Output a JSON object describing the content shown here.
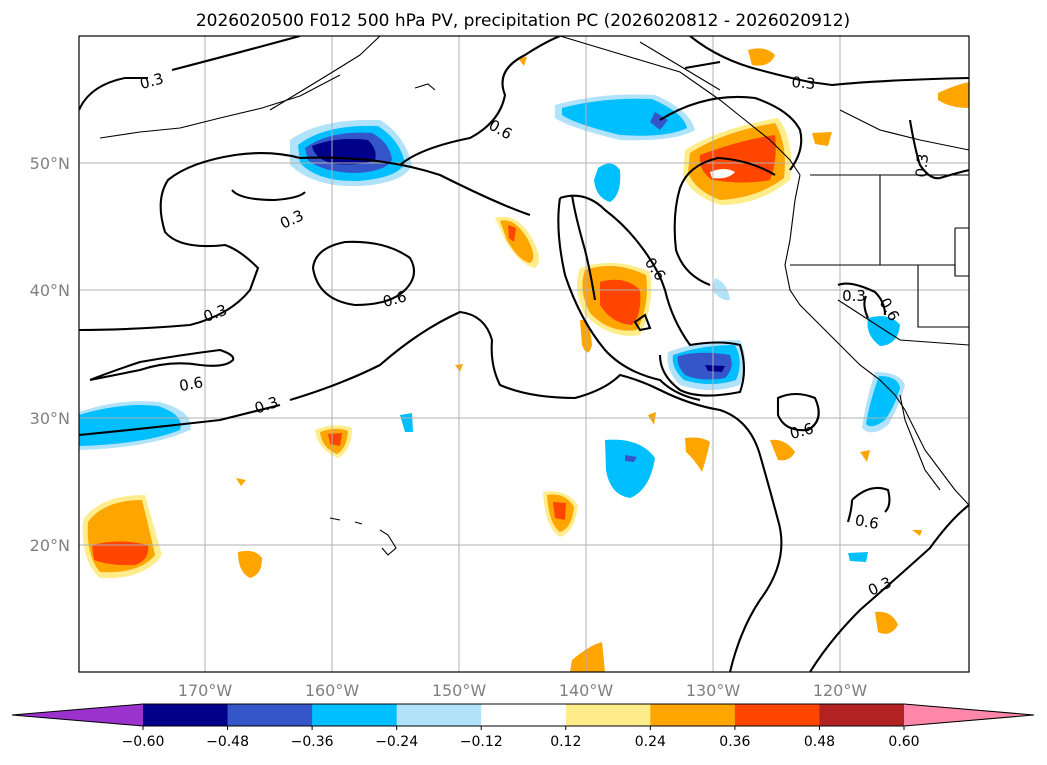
{
  "title": "2026020500 F012 500 hPa PV, precipitation PC (2026020812 - 2026020912)",
  "lat_labels": [
    "50°N",
    "40°N",
    "30°N",
    "20°N"
  ],
  "lon_labels": [
    "170°W",
    "160°W",
    "150°W",
    "140°W",
    "130°W",
    "120°W"
  ],
  "colorbar": {
    "ticks": [
      "−0.60",
      "−0.48",
      "−0.36",
      "−0.24",
      "−0.12",
      "0.12",
      "0.24",
      "0.36",
      "0.48",
      "0.60"
    ],
    "colors": [
      "#9b32cd",
      "#00008b",
      "#3556c8",
      "#00bfff",
      "#b0e2fa",
      "#ffffff",
      "#ffec8b",
      "#ffa500",
      "#ff4500",
      "#b22222",
      "#ff88aa"
    ]
  },
  "contour_labels": {
    "c1": "0.3",
    "c2": "0.6",
    "c3": "0.3",
    "c4": "0.6",
    "c5": "0.3",
    "c6": "0.6",
    "c7": "0.3",
    "c8": "0.6",
    "c9": "0.6",
    "c10": "0.3",
    "c11": "0.6",
    "c12": "0.6",
    "c13": "0.3",
    "c14": "0.3",
    "c15": "0.3"
  },
  "shading_colors": {
    "neg_light": "#b0e2fa",
    "neg_mid": "#00bfff",
    "neg_strong": "#3556c8",
    "neg_max": "#00008b",
    "pos_light": "#ffec8b",
    "pos_mid": "#ffa500",
    "pos_strong": "#ff4500"
  }
}
